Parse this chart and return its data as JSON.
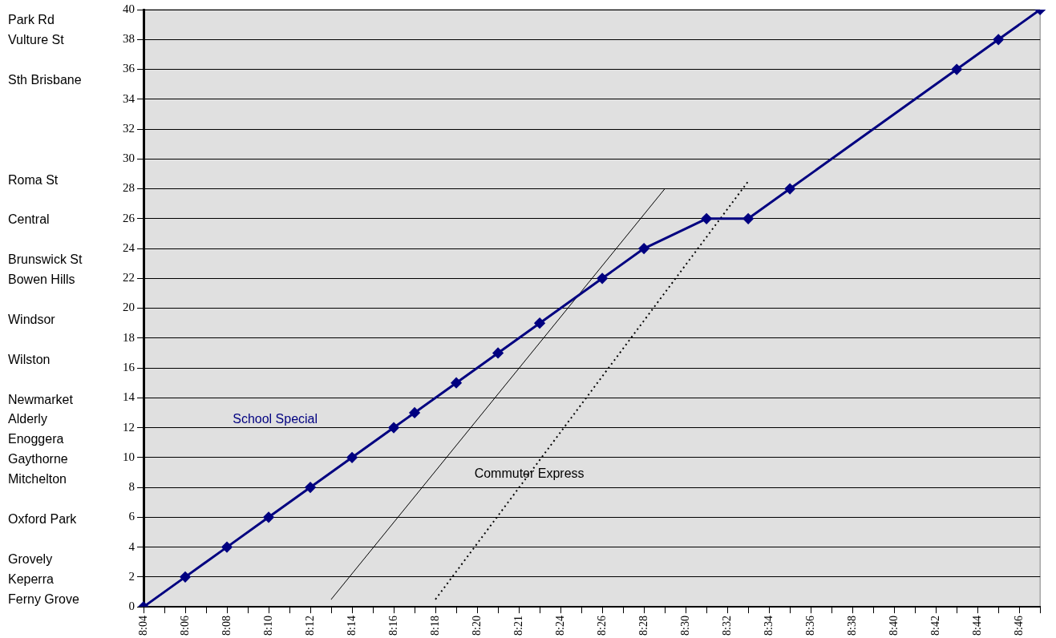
{
  "chart_data": {
    "type": "line",
    "categories": [
      "8:04",
      null,
      "8:06",
      null,
      "8:08",
      null,
      "8:10",
      null,
      "8:12",
      null,
      "8:14",
      null,
      "8:16",
      null,
      "8:18",
      null,
      "8:20",
      null,
      "8:21",
      null,
      "8:24",
      null,
      "8:26",
      null,
      "8:28",
      null,
      "8:30",
      null,
      "8:32",
      null,
      "8:34",
      null,
      "8:36",
      null,
      "8:38",
      null,
      "8:40",
      null,
      "8:42",
      null,
      "8:44",
      null,
      "8:46",
      null
    ],
    "series": [
      {
        "name": "School Special",
        "color": "#000080",
        "marker": "diamond",
        "line_style": "solid",
        "values": [
          0,
          null,
          2,
          null,
          4,
          null,
          6,
          null,
          8,
          null,
          10,
          null,
          12,
          13,
          null,
          15,
          null,
          17,
          null,
          19,
          null,
          null,
          22,
          null,
          24,
          null,
          null,
          26,
          null,
          26,
          null,
          28,
          null,
          null,
          null,
          null,
          null,
          null,
          null,
          36,
          null,
          38,
          null,
          40
        ]
      },
      {
        "color": "#000000",
        "line_style": "solid",
        "values": [
          null,
          null,
          null,
          null,
          null,
          null,
          null,
          null,
          null,
          0.5,
          null,
          null,
          null,
          null,
          null,
          null,
          null,
          null,
          null,
          null,
          null,
          null,
          null,
          null,
          null,
          28,
          null,
          null,
          null,
          null,
          null,
          null,
          null,
          null,
          null,
          null,
          null,
          null,
          null,
          null,
          null,
          null,
          null,
          null
        ]
      },
      {
        "name": "Commuter Express",
        "color": "#000000",
        "marker": "none",
        "line_style": "dotted",
        "values": [
          null,
          null,
          null,
          null,
          null,
          null,
          null,
          null,
          null,
          null,
          null,
          null,
          null,
          null,
          0.5,
          null,
          null,
          null,
          null,
          null,
          null,
          null,
          null,
          null,
          null,
          null,
          null,
          null,
          null,
          28.5,
          null,
          null,
          null,
          null,
          null,
          null,
          null,
          null,
          null,
          null,
          null,
          null,
          null,
          null
        ]
      }
    ],
    "ylim": [
      0,
      40
    ],
    "yticks": [
      0,
      2,
      4,
      6,
      8,
      10,
      12,
      14,
      16,
      18,
      20,
      22,
      24,
      26,
      28,
      30,
      32,
      34,
      36,
      38,
      40
    ],
    "grid": "y",
    "legend": false,
    "annotations": [
      "Park Rd",
      "Vulture St",
      "Sth Brisbane",
      "Roma St",
      "Central",
      "Brunswick St",
      "Bowen Hills",
      "Windsor",
      "Wilston",
      "Newmarket",
      "Alderly",
      "Enoggera",
      "Gaythorne",
      "Mitchelton",
      "Oxford Park",
      "Grovely",
      "Keperra",
      "Ferny Grove"
    ]
  }
}
